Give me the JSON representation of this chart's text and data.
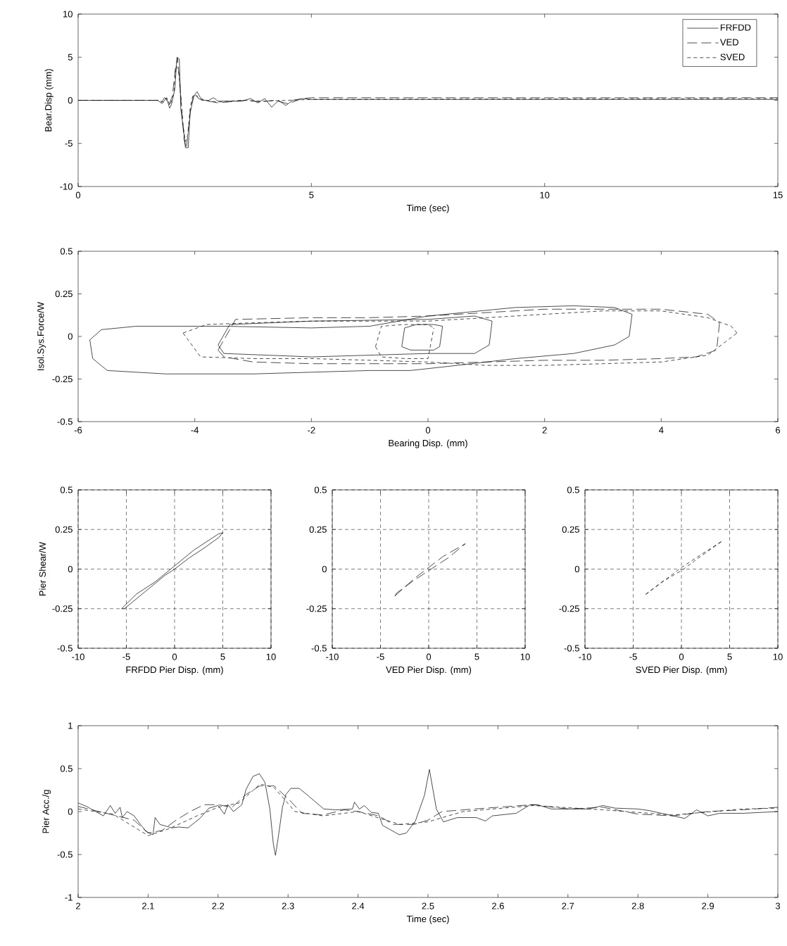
{
  "chart_data": [
    {
      "type": "line",
      "xlabel": "Time (sec)",
      "ylabel": "Bear.Disp (mm)",
      "xlim": [
        0,
        15
      ],
      "ylim": [
        -10,
        10
      ],
      "xticks": [
        0,
        5,
        10,
        15
      ],
      "yticks": [
        -10,
        -5,
        0,
        5,
        10
      ],
      "legend": "top right",
      "series": [
        {
          "name": "FRFDD",
          "color": "#000000",
          "line_style": "solid",
          "x": [
            0,
            1.7,
            1.78,
            1.85,
            1.9,
            1.96,
            2.0,
            2.07,
            2.12,
            2.17,
            2.2,
            2.26,
            2.3,
            2.36,
            2.4,
            2.48,
            2.55,
            2.62,
            2.7,
            2.8,
            2.9,
            3.0,
            3.5,
            3.7,
            3.85,
            4.0,
            4.15,
            4.3,
            4.45,
            4.6,
            4.8,
            5,
            15
          ],
          "values": [
            0,
            0,
            -0.3,
            0.3,
            0.2,
            -0.9,
            -0.5,
            1.2,
            5.0,
            4.8,
            -1.0,
            -3.5,
            -5.5,
            -5.5,
            -1.5,
            0.5,
            1.0,
            0.3,
            0,
            0,
            0.3,
            -0.1,
            -0.1,
            0.2,
            -0.3,
            0.2,
            -0.8,
            0,
            -0.6,
            0,
            0.2,
            0.1,
            0.1
          ]
        },
        {
          "name": "VED",
          "color": "#000000",
          "line_style": "dashed",
          "x": [
            0,
            1.72,
            1.8,
            1.88,
            1.95,
            2.02,
            2.08,
            2.13,
            2.18,
            2.22,
            2.27,
            2.32,
            2.37,
            2.42,
            2.5,
            2.58,
            2.7,
            3.0,
            3.6,
            3.9,
            4.2,
            4.5,
            4.8,
            5,
            15
          ],
          "values": [
            0,
            0,
            -0.4,
            0.2,
            -0.5,
            0.5,
            3.5,
            4.9,
            2.0,
            -1.0,
            -4.5,
            -5.6,
            -3.0,
            -0.5,
            0.8,
            0.2,
            0,
            -0.3,
            0,
            -0.2,
            0,
            -0.4,
            0.2,
            0.3,
            0.3
          ]
        },
        {
          "name": "SVED",
          "color": "#000000",
          "line_style": "dotted",
          "x": [
            0,
            1.72,
            1.82,
            1.9,
            1.97,
            2.05,
            2.1,
            2.15,
            2.2,
            2.25,
            2.3,
            2.35,
            2.4,
            2.46,
            2.55,
            2.65,
            3.0,
            3.5,
            4.0,
            4.5,
            5,
            15
          ],
          "values": [
            0,
            0,
            -0.2,
            0.3,
            -0.6,
            0.8,
            4.0,
            3.5,
            0.5,
            -3.0,
            -4.8,
            -4.0,
            -1.0,
            0.6,
            0.5,
            0,
            -0.2,
            0,
            -0.1,
            0,
            0.1,
            0.2
          ]
        }
      ]
    },
    {
      "type": "line",
      "xlabel": "Bearing Disp. (mm)",
      "ylabel": "Isol.Sys.Force/W",
      "xlim": [
        -6,
        6
      ],
      "ylim": [
        -0.5,
        0.5
      ],
      "xticks": [
        -6,
        -4,
        -2,
        0,
        2,
        4,
        6
      ],
      "yticks": [
        -0.5,
        -0.25,
        0,
        0.25,
        0.5
      ],
      "series": [
        {
          "color": "#000000",
          "line_style": "solid",
          "x": [
            -5.8,
            -5.6,
            -5,
            -3.5,
            -2,
            -1,
            0,
            0.6,
            1.5,
            2.5,
            3.2,
            3.5
          ],
          "values": [
            -0.02,
            0.04,
            0.06,
            0.06,
            0.05,
            0.06,
            0.12,
            0.14,
            0.17,
            0.18,
            0.17,
            0.13
          ]
        },
        {
          "color": "#000000",
          "line_style": "solid",
          "x": [
            -5.8,
            -5.75,
            -5.5,
            -4.5,
            -3,
            -2,
            -1,
            -0.3,
            0.5,
            1.5,
            2.5,
            3.2,
            3.45,
            3.5
          ],
          "values": [
            -0.02,
            -0.13,
            -0.2,
            -0.22,
            -0.22,
            -0.21,
            -0.2,
            -0.2,
            -0.17,
            -0.13,
            -0.1,
            -0.05,
            0.0,
            0.13
          ]
        },
        {
          "color": "#000000",
          "line_style": "solid",
          "x": [
            -3.6,
            -3.4,
            -2,
            0,
            0.8,
            1.1
          ],
          "values": [
            -0.05,
            0.07,
            0.09,
            0.1,
            0.12,
            0.09
          ]
        },
        {
          "color": "#000000",
          "line_style": "solid",
          "x": [
            -3.6,
            -3.5,
            -2,
            0,
            0.8,
            1.05,
            1.1
          ],
          "values": [
            -0.05,
            -0.1,
            -0.12,
            -0.1,
            -0.1,
            -0.05,
            0.09
          ]
        },
        {
          "color": "#000000",
          "line_style": "solid",
          "x": [
            -0.45,
            -0.4,
            -0.2,
            0.1,
            0.25
          ],
          "values": [
            -0.06,
            0.05,
            0.07,
            0.07,
            0.06
          ]
        },
        {
          "color": "#000000",
          "line_style": "solid",
          "x": [
            -0.45,
            -0.3,
            0.1,
            0.2,
            0.25
          ],
          "values": [
            -0.06,
            -0.08,
            -0.08,
            -0.06,
            0.06
          ]
        },
        {
          "color": "#000000",
          "line_style": "dashed",
          "x": [
            -3.6,
            -3.3,
            -2,
            -1,
            0,
            1,
            2,
            3,
            4,
            4.8,
            5.0
          ],
          "values": [
            -0.08,
            0.1,
            0.11,
            0.11,
            0.12,
            0.14,
            0.16,
            0.16,
            0.16,
            0.13,
            0.08
          ]
        },
        {
          "color": "#000000",
          "line_style": "dashed",
          "x": [
            -3.6,
            -3.5,
            -3,
            -2,
            -1,
            0,
            1,
            2,
            3,
            4,
            4.6,
            4.95,
            5.0
          ],
          "values": [
            -0.08,
            -0.12,
            -0.15,
            -0.16,
            -0.16,
            -0.16,
            -0.15,
            -0.14,
            -0.14,
            -0.13,
            -0.12,
            -0.08,
            0.08
          ]
        },
        {
          "color": "#000000",
          "line_style": "dotted",
          "x": [
            -4.2,
            -3.8,
            -3,
            -2,
            -1,
            0,
            1,
            2,
            3,
            4,
            4.8,
            5.2,
            5.3
          ],
          "values": [
            0.02,
            0.07,
            0.08,
            0.09,
            0.09,
            0.09,
            0.11,
            0.13,
            0.15,
            0.15,
            0.11,
            0.06,
            0.02
          ]
        },
        {
          "color": "#000000",
          "line_style": "dotted",
          "x": [
            -4.2,
            -3.9,
            -3,
            -2,
            -1,
            0,
            1,
            2,
            3,
            4,
            4.8,
            5.3
          ],
          "values": [
            0.02,
            -0.12,
            -0.13,
            -0.13,
            -0.14,
            -0.15,
            -0.17,
            -0.17,
            -0.16,
            -0.15,
            -0.11,
            0.02
          ]
        },
        {
          "color": "#000000",
          "line_style": "dotted",
          "x": [
            -0.9,
            -0.8,
            -0.4,
            0,
            0.1
          ],
          "values": [
            -0.06,
            0.06,
            0.07,
            0.07,
            0.05
          ]
        },
        {
          "color": "#000000",
          "line_style": "dotted",
          "x": [
            -0.9,
            -0.8,
            -0.4,
            0,
            0.1
          ],
          "values": [
            -0.06,
            -0.12,
            -0.13,
            -0.13,
            0.05
          ]
        }
      ]
    },
    {
      "type": "line",
      "xlabel": "FRFDD Pier Disp. (mm)",
      "ylabel": "Pier Shear/W",
      "xlim": [
        -10,
        10
      ],
      "ylim": [
        -0.5,
        0.5
      ],
      "xticks": [
        -10,
        -5,
        0,
        5,
        10
      ],
      "yticks": [
        -0.5,
        -0.25,
        0,
        0.25,
        0.5
      ],
      "grid": true,
      "series": [
        {
          "color": "#000000",
          "line_style": "solid",
          "x": [
            -5.5,
            -4,
            -2,
            0,
            2,
            4.5,
            5
          ],
          "values": [
            -0.25,
            -0.16,
            -0.08,
            0.02,
            0.12,
            0.22,
            0.23
          ]
        },
        {
          "color": "#000000",
          "line_style": "solid",
          "x": [
            -5.5,
            -5.2,
            -3,
            -1,
            0,
            1.5,
            3,
            4.6,
            5
          ],
          "values": [
            -0.25,
            -0.25,
            -0.14,
            -0.04,
            0.0,
            0.07,
            0.13,
            0.2,
            0.23
          ]
        }
      ]
    },
    {
      "type": "line",
      "xlabel": "VED Pier Disp. (mm)",
      "xlim": [
        -10,
        10
      ],
      "ylim": [
        -0.5,
        0.5
      ],
      "xticks": [
        -10,
        -5,
        0,
        5,
        10
      ],
      "yticks": [
        -0.5,
        -0.25,
        0,
        0.25,
        0.5
      ],
      "grid": true,
      "series": [
        {
          "color": "#000000",
          "line_style": "dashed",
          "x": [
            -3.5,
            -1.5,
            0,
            1.5,
            3.5,
            3.8
          ],
          "values": [
            -0.17,
            -0.06,
            0.01,
            0.08,
            0.15,
            0.16
          ]
        },
        {
          "color": "#000000",
          "line_style": "dashed",
          "x": [
            -3.5,
            -3.3,
            -1.5,
            0,
            2,
            3.8
          ],
          "values": [
            -0.17,
            -0.15,
            -0.07,
            -0.01,
            0.07,
            0.16
          ]
        }
      ]
    },
    {
      "type": "line",
      "xlabel": "SVED Pier Disp. (mm)",
      "xlim": [
        -10,
        10
      ],
      "ylim": [
        -0.5,
        0.5
      ],
      "xticks": [
        -10,
        -5,
        0,
        5,
        10
      ],
      "yticks": [
        -0.5,
        -0.25,
        0,
        0.25,
        0.5
      ],
      "grid": true,
      "series": [
        {
          "color": "#000000",
          "line_style": "dotted",
          "x": [
            -3.7,
            -1.5,
            0,
            2,
            4.3
          ],
          "values": [
            -0.16,
            -0.06,
            0.01,
            0.09,
            0.18
          ]
        },
        {
          "color": "#000000",
          "line_style": "dotted",
          "x": [
            -3.7,
            -3.5,
            -2,
            0,
            2,
            4.3
          ],
          "values": [
            -0.16,
            -0.15,
            -0.08,
            -0.01,
            0.08,
            0.18
          ]
        }
      ]
    },
    {
      "type": "line",
      "xlabel": "Time (sec)",
      "ylabel": "Pier Acc./g",
      "xlim": [
        2,
        3
      ],
      "ylim": [
        -1,
        1
      ],
      "xticks": [
        2,
        2.1,
        2.2,
        2.3,
        2.4,
        2.5,
        2.6,
        2.7,
        2.8,
        2.9,
        3
      ],
      "yticks": [
        -1,
        -0.5,
        0,
        0.5,
        1
      ],
      "series": [
        {
          "color": "#000000",
          "line_style": "solid",
          "x": [
            2.0,
            2.012,
            2.036,
            2.046,
            2.053,
            2.06,
            2.063,
            2.07,
            2.08,
            2.09,
            2.097,
            2.107,
            2.11,
            2.117,
            2.134,
            2.144,
            2.157,
            2.174,
            2.187,
            2.2,
            2.209,
            2.214,
            2.222,
            2.234,
            2.24,
            2.25,
            2.259,
            2.267,
            2.274,
            2.279,
            2.282,
            2.286,
            2.292,
            2.297,
            2.304,
            2.316,
            2.328,
            2.351,
            2.368,
            2.392,
            2.395,
            2.402,
            2.409,
            2.419,
            2.429,
            2.435,
            2.459,
            2.469,
            2.482,
            2.495,
            2.502,
            2.512,
            2.522,
            2.542,
            2.569,
            2.582,
            2.592,
            2.626,
            2.646,
            2.656,
            2.676,
            2.73,
            2.75,
            2.767,
            2.8,
            2.817,
            2.85,
            2.867,
            2.884,
            2.9,
            2.917,
            2.951,
            3.0
          ],
          "values": [
            0.1,
            0.06,
            -0.05,
            0.07,
            -0.02,
            0.05,
            -0.07,
            0.0,
            -0.05,
            -0.16,
            -0.23,
            -0.27,
            -0.07,
            -0.15,
            -0.19,
            -0.18,
            -0.19,
            -0.08,
            0.04,
            0.07,
            -0.03,
            0.08,
            0.0,
            0.08,
            0.26,
            0.41,
            0.44,
            0.34,
            0.03,
            -0.38,
            -0.51,
            -0.3,
            0.05,
            0.2,
            0.27,
            0.27,
            0.19,
            0.03,
            0.02,
            0.03,
            0.11,
            0.03,
            0.07,
            -0.01,
            -0.02,
            -0.16,
            -0.27,
            -0.25,
            -0.11,
            0.19,
            0.49,
            0.03,
            -0.12,
            -0.07,
            -0.07,
            -0.11,
            -0.05,
            -0.02,
            0.08,
            0.08,
            0.03,
            0.03,
            0.07,
            0.04,
            0.03,
            0.01,
            -0.05,
            -0.08,
            0.02,
            -0.05,
            -0.02,
            -0.02,
            0.0
          ]
        },
        {
          "color": "#000000",
          "line_style": "dashed",
          "x": [
            2.0,
            2.03,
            2.08,
            2.1,
            2.12,
            2.14,
            2.16,
            2.18,
            2.2,
            2.22,
            2.24,
            2.26,
            2.28,
            2.3,
            2.32,
            2.35,
            2.38,
            2.4,
            2.43,
            2.45,
            2.48,
            2.5,
            2.52,
            2.55,
            2.6,
            2.65,
            2.7,
            2.75,
            2.8,
            2.85,
            2.9,
            2.95,
            3.0
          ],
          "values": [
            0.06,
            0.0,
            -0.1,
            -0.25,
            -0.22,
            -0.1,
            0.0,
            0.08,
            0.08,
            0.05,
            0.2,
            0.3,
            0.3,
            0.15,
            -0.02,
            -0.04,
            0.02,
            0.0,
            -0.05,
            -0.15,
            -0.15,
            -0.1,
            0.0,
            0.02,
            0.05,
            0.08,
            0.03,
            0.05,
            -0.03,
            -0.05,
            0.0,
            0.02,
            0.05
          ]
        },
        {
          "color": "#000000",
          "line_style": "dotted",
          "x": [
            2.0,
            2.05,
            2.1,
            2.13,
            2.17,
            2.2,
            2.23,
            2.26,
            2.28,
            2.31,
            2.35,
            2.4,
            2.46,
            2.5,
            2.55,
            2.65,
            2.75,
            2.85,
            2.95,
            3.0
          ],
          "values": [
            0.03,
            -0.03,
            -0.28,
            -0.2,
            -0.05,
            0.05,
            0.1,
            0.32,
            0.28,
            0.0,
            -0.05,
            0.0,
            -0.15,
            -0.12,
            0.0,
            0.07,
            0.02,
            -0.04,
            0.03,
            0.04
          ]
        }
      ]
    }
  ]
}
